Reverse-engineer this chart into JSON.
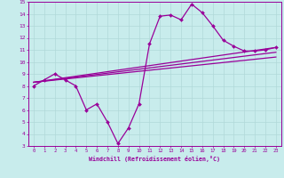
{
  "xlabel": "Windchill (Refroidissement éolien,°C)",
  "bg_color": "#c8ecec",
  "grid_color": "#b0d8d8",
  "line_color": "#990099",
  "xlim": [
    -0.5,
    23.5
  ],
  "ylim": [
    3,
    15
  ],
  "yticks": [
    3,
    4,
    5,
    6,
    7,
    8,
    9,
    10,
    11,
    12,
    13,
    14,
    15
  ],
  "xticks": [
    0,
    1,
    2,
    3,
    4,
    5,
    6,
    7,
    8,
    9,
    10,
    11,
    12,
    13,
    14,
    15,
    16,
    17,
    18,
    19,
    20,
    21,
    22,
    23
  ],
  "line1_x": [
    0,
    1,
    2,
    3,
    4,
    5,
    6,
    7,
    8,
    9,
    10,
    11,
    12,
    13,
    14,
    15,
    16,
    17,
    18,
    19,
    20,
    21,
    22,
    23
  ],
  "line1_y": [
    8.0,
    8.5,
    9.0,
    8.5,
    8.0,
    6.0,
    6.5,
    5.0,
    3.2,
    4.5,
    6.5,
    11.5,
    13.8,
    13.9,
    13.5,
    14.8,
    14.1,
    13.0,
    11.8,
    11.3,
    10.9,
    10.9,
    11.0,
    11.2
  ],
  "line2_x": [
    0,
    23
  ],
  "line2_y": [
    8.3,
    11.2
  ],
  "line3_x": [
    0,
    23
  ],
  "line3_y": [
    8.3,
    10.8
  ],
  "line4_x": [
    0,
    23
  ],
  "line4_y": [
    8.3,
    10.4
  ]
}
